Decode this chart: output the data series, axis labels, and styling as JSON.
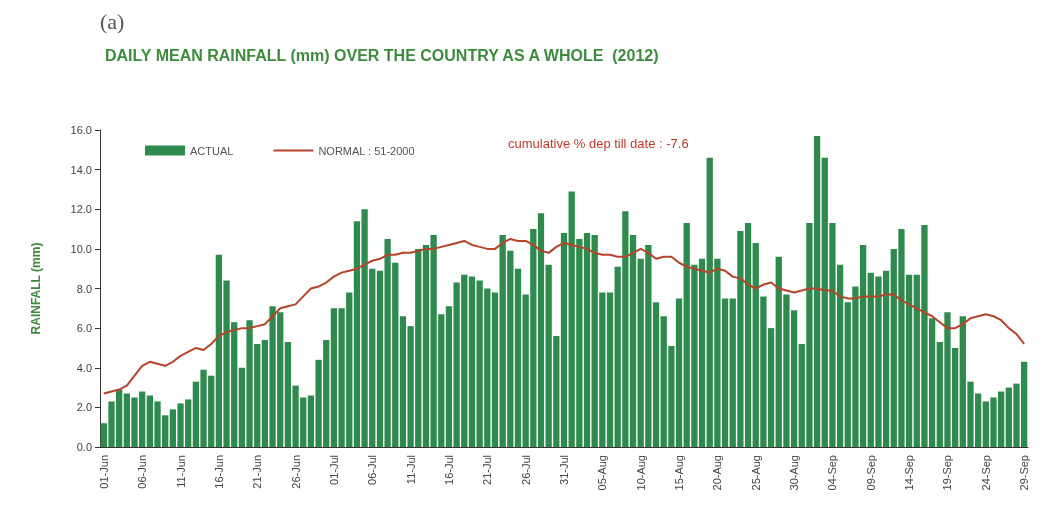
{
  "chart_data": {
    "type": "bar",
    "title": "DAILY MEAN RAINFALL (mm) OVER THE COUNTRY AS A WHOLE  (2012)",
    "ylabel": "RAINFALL (mm)",
    "annotations": [
      "(a)",
      "cumulative % dep till date : -7.6"
    ],
    "categories": [
      "01-Jun",
      null,
      null,
      null,
      null,
      "06-Jun",
      null,
      null,
      null,
      null,
      "11-Jun",
      null,
      null,
      null,
      null,
      "16-Jun",
      null,
      null,
      null,
      null,
      "21-Jun",
      null,
      null,
      null,
      null,
      "26-Jun",
      null,
      null,
      null,
      null,
      "01-Jul",
      null,
      null,
      null,
      null,
      "06-Jul",
      null,
      null,
      null,
      null,
      "11-Jul",
      null,
      null,
      null,
      null,
      "16-Jul",
      null,
      null,
      null,
      null,
      "21-Jul",
      null,
      null,
      null,
      null,
      "26-Jul",
      null,
      null,
      null,
      null,
      "31-Jul",
      null,
      null,
      null,
      null,
      "05-Aug",
      null,
      null,
      null,
      null,
      "10-Aug",
      null,
      null,
      null,
      null,
      "15-Aug",
      null,
      null,
      null,
      null,
      "20-Aug",
      null,
      null,
      null,
      null,
      "25-Aug",
      null,
      null,
      null,
      null,
      "30-Aug",
      null,
      null,
      null,
      null,
      "04-Sep",
      null,
      null,
      null,
      null,
      "09-Sep",
      null,
      null,
      null,
      null,
      "14-Sep",
      null,
      null,
      null,
      null,
      "19-Sep",
      null,
      null,
      null,
      null,
      "24-Sep",
      null,
      null,
      null,
      null,
      "29-Sep"
    ],
    "series": [
      {
        "name": "ACTUAL",
        "color": "#2f8a4e",
        "values": [
          1.2,
          2.3,
          2.9,
          2.7,
          2.5,
          2.8,
          2.6,
          2.3,
          1.6,
          1.9,
          2.2,
          2.4,
          3.3,
          3.9,
          3.6,
          9.7,
          8.4,
          6.3,
          4.0,
          6.4,
          5.2,
          5.4,
          7.1,
          6.8,
          5.3,
          3.1,
          2.5,
          2.6,
          4.4,
          5.4,
          7.0,
          7.0,
          7.8,
          11.4,
          12.0,
          9.0,
          8.9,
          10.5,
          9.3,
          6.6,
          6.1,
          10.0,
          10.2,
          10.7,
          6.7,
          7.1,
          8.3,
          8.7,
          8.6,
          8.4,
          8.0,
          7.8,
          10.7,
          9.9,
          9.0,
          7.7,
          11.0,
          11.8,
          9.2,
          5.6,
          10.8,
          12.9,
          10.5,
          10.8,
          10.7,
          7.8,
          7.8,
          9.1,
          11.9,
          10.7,
          9.5,
          10.2,
          7.3,
          6.6,
          5.1,
          7.5,
          11.3,
          9.2,
          9.5,
          14.6,
          9.5,
          7.5,
          7.5,
          10.9,
          11.3,
          10.3,
          7.6,
          6.0,
          9.6,
          7.7,
          6.9,
          5.2,
          11.3,
          15.7,
          14.6,
          11.3,
          9.2,
          7.3,
          8.1,
          10.2,
          8.8,
          8.6,
          8.9,
          10.0,
          11.0,
          8.7,
          8.7,
          11.2,
          6.5,
          5.3,
          6.8,
          5.0,
          6.6,
          3.3,
          2.7,
          2.3,
          2.5,
          2.8,
          3.0,
          3.2,
          4.3
        ]
      },
      {
        "name": "NORMAL : 51-2000",
        "type": "line",
        "color": "#b5442a",
        "values": [
          2.7,
          2.8,
          2.9,
          3.1,
          3.6,
          4.1,
          4.3,
          4.2,
          4.1,
          4.3,
          4.6,
          4.8,
          5.0,
          4.9,
          5.2,
          5.6,
          5.8,
          5.9,
          6.0,
          6.0,
          6.1,
          6.2,
          6.6,
          7.0,
          7.1,
          7.2,
          7.6,
          8.0,
          8.1,
          8.3,
          8.6,
          8.8,
          8.9,
          9.0,
          9.2,
          9.4,
          9.5,
          9.7,
          9.7,
          9.8,
          9.8,
          9.9,
          10.0,
          10.0,
          10.1,
          10.2,
          10.3,
          10.4,
          10.2,
          10.1,
          10.0,
          10.0,
          10.3,
          10.5,
          10.4,
          10.4,
          10.2,
          9.9,
          9.8,
          10.1,
          10.3,
          10.2,
          10.1,
          10.0,
          9.8,
          9.7,
          9.7,
          9.6,
          9.6,
          9.8,
          10.0,
          9.8,
          9.5,
          9.6,
          9.6,
          9.3,
          9.1,
          9.0,
          8.9,
          8.8,
          9.0,
          8.9,
          8.6,
          8.5,
          8.2,
          8.0,
          8.2,
          8.3,
          8.0,
          7.9,
          7.8,
          7.9,
          8.0,
          8.0,
          7.9,
          7.9,
          7.6,
          7.5,
          7.5,
          7.6,
          7.6,
          7.6,
          7.7,
          7.7,
          7.4,
          7.2,
          7.0,
          6.8,
          6.6,
          6.3,
          6.0,
          6.0,
          6.2,
          6.5,
          6.6,
          6.7,
          6.6,
          6.4,
          6.0,
          5.7,
          5.2
        ]
      }
    ],
    "ylim": [
      0,
      16
    ],
    "yticks": [
      {
        "value": 0,
        "label": "0.0"
      },
      {
        "value": 2,
        "label": "2.0"
      },
      {
        "value": 4,
        "label": "4.0"
      },
      {
        "value": 6,
        "label": "6.0"
      },
      {
        "value": 8,
        "label": "8.0"
      },
      {
        "value": 10,
        "label": "10.0"
      },
      {
        "value": 12,
        "label": "12.0"
      },
      {
        "value": 14,
        "label": "14.0"
      },
      {
        "value": 16,
        "label": "16.0"
      }
    ],
    "grid": false,
    "legend": "top left",
    "marker": "none",
    "line_style": "solid"
  }
}
